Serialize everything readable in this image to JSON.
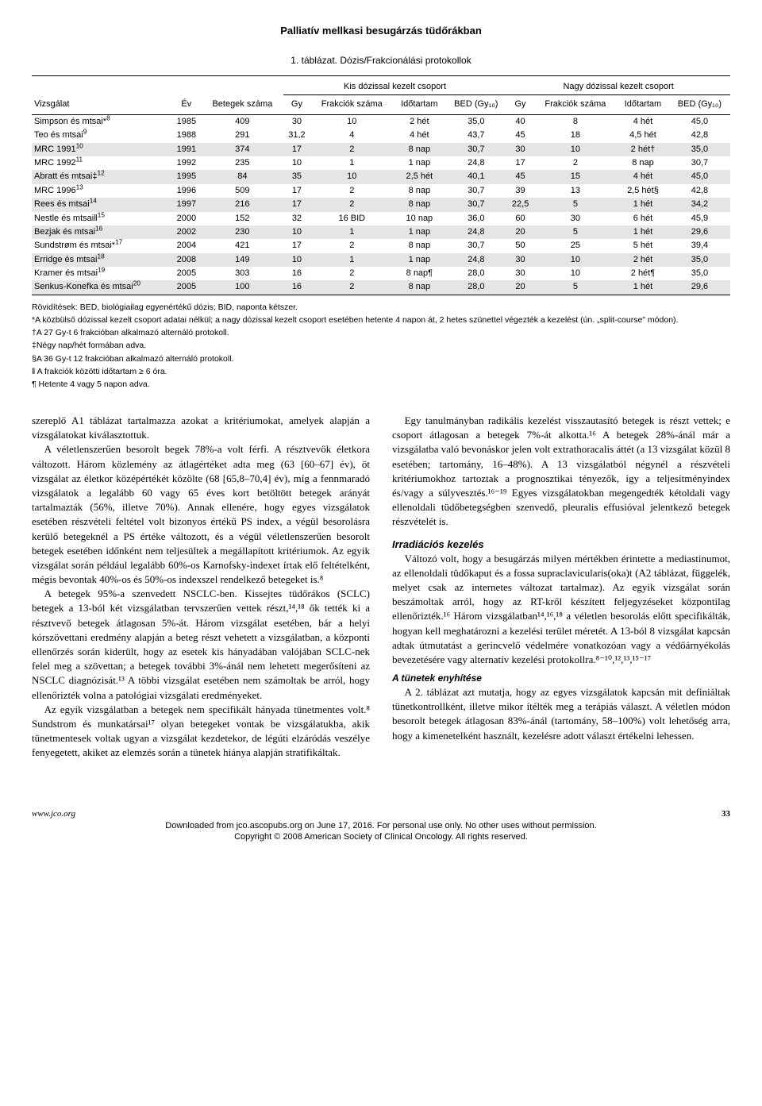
{
  "header": {
    "title": "Palliatív mellkasi besugárzás tüdőrákban"
  },
  "table": {
    "caption": "1. táblázat. Dózis/Frakcionálási protokollok",
    "group_headers": {
      "kis": "Kis dózissal kezelt csoport",
      "nagy": "Nagy dózissal kezelt csoport"
    },
    "columns": {
      "vizsgalat": "Vizsgálat",
      "ev": "Év",
      "betegek": "Betegek száma",
      "gy1": "Gy",
      "frak1": "Frakciók száma",
      "ido1": "Időtartam",
      "bed1": "BED (Gy₁₀)",
      "gy2": "Gy",
      "frak2": "Frakciók száma",
      "ido2": "Időtartam",
      "bed2": "BED (Gy₁₀)"
    },
    "rows": [
      {
        "name": "Simpson és mtsai*",
        "sup": "8",
        "ev": "1985",
        "n": "409",
        "gy1": "30",
        "f1": "10",
        "i1": "2 hét",
        "b1": "35,0",
        "gy2": "40",
        "f2": "8",
        "i2": "4 hét",
        "b2": "45,0",
        "shade": false
      },
      {
        "name": "Teo és mtsai",
        "sup": "9",
        "ev": "1988",
        "n": "291",
        "gy1": "31,2",
        "f1": "4",
        "i1": "4 hét",
        "b1": "43,7",
        "gy2": "45",
        "f2": "18",
        "i2": "4,5 hét",
        "b2": "42,8",
        "shade": false
      },
      {
        "name": "MRC 1991",
        "sup": "10",
        "ev": "1991",
        "n": "374",
        "gy1": "17",
        "f1": "2",
        "i1": "8 nap",
        "b1": "30,7",
        "gy2": "30",
        "f2": "10",
        "i2": "2 hét†",
        "b2": "35,0",
        "shade": true
      },
      {
        "name": "MRC 1992",
        "sup": "11",
        "ev": "1992",
        "n": "235",
        "gy1": "10",
        "f1": "1",
        "i1": "1 nap",
        "b1": "24,8",
        "gy2": "17",
        "f2": "2",
        "i2": "8 nap",
        "b2": "30,7",
        "shade": false
      },
      {
        "name": "Abratt és mtsai‡",
        "sup": "12",
        "ev": "1995",
        "n": "84",
        "gy1": "35",
        "f1": "10",
        "i1": "2,5 hét",
        "b1": "40,1",
        "gy2": "45",
        "f2": "15",
        "i2": "4 hét",
        "b2": "45,0",
        "shade": true
      },
      {
        "name": "MRC 1996",
        "sup": "13",
        "ev": "1996",
        "n": "509",
        "gy1": "17",
        "f1": "2",
        "i1": "8 nap",
        "b1": "30,7",
        "gy2": "39",
        "f2": "13",
        "i2": "2,5 hét§",
        "b2": "42,8",
        "shade": false
      },
      {
        "name": "Rees és mtsai",
        "sup": "14",
        "ev": "1997",
        "n": "216",
        "gy1": "17",
        "f1": "2",
        "i1": "8 nap",
        "b1": "30,7",
        "gy2": "22,5",
        "f2": "5",
        "i2": "1 hét",
        "b2": "34,2",
        "shade": true
      },
      {
        "name": "Nestle és mtsai‖",
        "sup": "15",
        "ev": "2000",
        "n": "152",
        "gy1": "32",
        "f1": "16 BID",
        "i1": "10 nap",
        "b1": "36,0",
        "gy2": "60",
        "f2": "30",
        "i2": "6 hét",
        "b2": "45,9",
        "shade": false
      },
      {
        "name": "Bezjak és mtsai",
        "sup": "16",
        "ev": "2002",
        "n": "230",
        "gy1": "10",
        "f1": "1",
        "i1": "1 nap",
        "b1": "24,8",
        "gy2": "20",
        "f2": "5",
        "i2": "1 hét",
        "b2": "29,6",
        "shade": true
      },
      {
        "name": "Sundstrøm és mtsai*",
        "sup": "17",
        "ev": "2004",
        "n": "421",
        "gy1": "17",
        "f1": "2",
        "i1": "8 nap",
        "b1": "30,7",
        "gy2": "50",
        "f2": "25",
        "i2": "5 hét",
        "b2": "39,4",
        "shade": false
      },
      {
        "name": "Erridge és mtsai",
        "sup": "18",
        "ev": "2008",
        "n": "149",
        "gy1": "10",
        "f1": "1",
        "i1": "1 nap",
        "b1": "24,8",
        "gy2": "30",
        "f2": "10",
        "i2": "2 hét",
        "b2": "35,0",
        "shade": true
      },
      {
        "name": "Kramer és mtsai",
        "sup": "19",
        "ev": "2005",
        "n": "303",
        "gy1": "16",
        "f1": "2",
        "i1": "8 nap¶",
        "b1": "28,0",
        "gy2": "30",
        "f2": "10",
        "i2": "2 hét¶",
        "b2": "35,0",
        "shade": false
      },
      {
        "name": "Senkus-Konefka és mtsai",
        "sup": "20",
        "ev": "2005",
        "n": "100",
        "gy1": "16",
        "f1": "2",
        "i1": "8 nap",
        "b1": "28,0",
        "gy2": "20",
        "f2": "5",
        "i2": "1 hét",
        "b2": "29,6",
        "shade": true
      }
    ],
    "notes": {
      "l1": "Rövidítések: BED, biológiailag egyenértékű dózis; BID, naponta kétszer.",
      "l2": "*A közbülső dózissal kezelt csoport adatai nélkül; a nagy dózissal kezelt csoport esetében hetente 4 napon át, 2 hetes szünettel végezték a kezelést (ún. „split-course\" módon).",
      "l3": "†A 27 Gy-t 6 frakcióban alkalmazó alternáló protokoll.",
      "l4": "‡Négy nap/hét formában adva.",
      "l5": "§A 36 Gy-t 12 frakcióban alkalmazó alternáló protokoll.",
      "l6": "‖ A frakciók közötti időtartam ≥ 6 óra.",
      "l7": "¶ Hetente 4 vagy 5 napon adva."
    }
  },
  "body": {
    "left": {
      "p1": "szereplő A1 táblázat tartalmazza azokat a kritériumokat, amelyek alapján a vizsgálatokat kiválasztottuk.",
      "p2": "A véletlenszerűen besorolt begek 78%-a volt férfi. A résztvevők életkora változott. Három közlemény az átlagértéket adta meg (63 [60–67] év), öt vizsgálat az életkor középértékét közölte (68 [65,8–70,4] év), míg a fennmaradó vizsgálatok a legalább 60 vagy 65 éves kort betöltött betegek arányát tartalmazták (56%, illetve 70%). Annak ellenére, hogy egyes vizsgálatok esetében részvételi feltétel volt bizonyos értékű PS index, a végül besorolásra kerülő betegeknél a PS értéke változott, és a végül véletlenszerűen besorolt betegek esetében időnként nem teljesültek a megállapított kritériumok. Az egyik vizsgálat során például legalább 60%-os Karnofsky-indexet írtak elő feltételként, mégis bevontak 40%-os és 50%-os indexszel rendelkező betegeket is.⁸",
      "p3": "A betegek 95%-a szenvedett NSCLC-ben. Kissejtes tüdőrákos (SCLC) betegek a 13-ból két vizsgálatban tervszerűen vettek részt,¹⁴,¹⁸ ők tették ki a résztvevő betegek átlagosan 5%-át. Három vizsgálat esetében, bár a helyi kórszövettani eredmény alapján a beteg részt vehetett a vizsgálatban, a központi ellenőrzés során kiderült, hogy az esetek kis hányadában valójában SCLC-nek felel meg a szövettan; a betegek további 3%-ánál nem lehetett megerősíteni az NSCLC diagnózisát.¹³ A többi vizsgálat esetében nem számoltak be arról, hogy ellenőrizték volna a patológiai vizsgálati eredményeket.",
      "p4": "Az egyik vizsgálatban a betegek nem specifikált hányada tünetmentes volt.⁸ Sundstrom és munkatársai¹⁷ olyan betegeket vontak be vizsgálatukba, akik tünetmentesek voltak ugyan a vizsgálat kezdetekor, de légúti elzáródás veszélye fenyegetett, akiket az elemzés során a tünetek hiánya alapján stratifikáltak."
    },
    "right": {
      "p1": "Egy tanulmányban radikális kezelést visszautasító betegek is részt vettek; e csoport átlagosan a betegek 7%-át alkotta.¹⁶ A betegek 28%-ánál már a vizsgálatba való bevonáskor jelen volt extrathoracalis áttét (a 13 vizsgálat közül 8 esetében; tartomány, 16–48%). A 13 vizsgálatból négynél a részvételi kritériumokhoz tartoztak a prognosztikai tényezők, így a teljesítményindex és/vagy a súlyvesztés.¹⁶⁻¹⁹ Egyes vizsgálatokban megengedték kétoldali vagy ellenoldali tüdőbetegségben szenvedő, pleuralis effusióval jelentkező betegek részvételét is.",
      "h1": "Irradiációs kezelés",
      "p2": "Változó volt, hogy a besugárzás milyen mértékben érintette a mediastinumot, az ellenoldali tüdőkaput és a fossa supraclavicularis(oka)t (A2 táblázat, függelék, melyet csak az internetes változat tartalmaz). Az egyik vizsgálat során beszámoltak arról, hogy az RT-kről készített feljegyzéseket központilag ellenőrizték.¹⁶ Három vizsgálatban¹⁴,¹⁶,¹⁸ a véletlen besorolás előtt specifikálták, hogyan kell meghatározni a kezelési terület méretét. A 13-ból 8 vizsgálat kapcsán adtak útmutatást a gerincvelő védelmére vonatkozóan vagy a védőárnyékolás bevezetésére vagy alternatív kezelési protokollra.⁸⁻¹⁰,¹²,¹³,¹⁵⁻¹⁷",
      "h2": "A tünetek enyhítése",
      "p3": "A 2. táblázat azt mutatja, hogy az egyes vizsgálatok kapcsán mit definiáltak tünetkontrollként, illetve mikor ítélték meg a terápiás választ. A véletlen módon besorolt betegek átlagosan 83%-ánál (tartomány, 58–100%) volt lehetőség arra, hogy a kimenetelként használt, kezelésre adott választ értékelni lehessen."
    }
  },
  "footer": {
    "url": "www.jco.org",
    "page": "33",
    "dl1": "Downloaded from jco.ascopubs.org on June 17, 2016. For personal use only. No other uses without permission.",
    "dl2": "Copyright © 2008 American Society of Clinical Oncology. All rights reserved."
  }
}
